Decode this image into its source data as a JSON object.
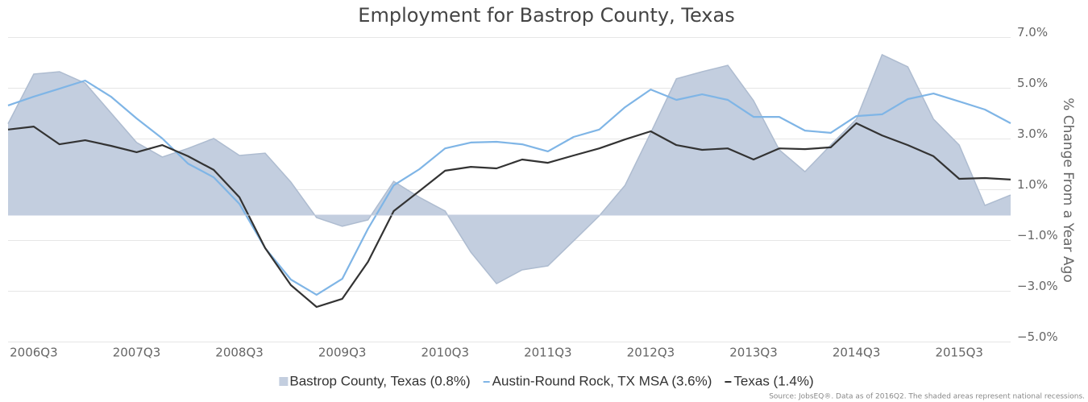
{
  "chart_data": {
    "type": "line",
    "title": "Employment for Bastrop County, Texas",
    "y_axis_label": "% Change From a Year Ago",
    "source": "Source: JobsEQ®. Data as of 2016Q2. The shaded areas represent national recessions.",
    "categories": [
      null,
      "2006Q3",
      null,
      null,
      null,
      "2007Q3",
      null,
      null,
      null,
      "2008Q3",
      null,
      null,
      null,
      "2009Q3",
      null,
      null,
      null,
      "2010Q3",
      null,
      null,
      null,
      "2011Q3",
      null,
      null,
      null,
      "2012Q3",
      null,
      null,
      null,
      "2013Q3",
      null,
      null,
      null,
      "2014Q3",
      null,
      null,
      null,
      "2015Q3",
      null,
      null
    ],
    "ylim": [
      -5,
      7
    ],
    "yticks": [
      {
        "value": -5,
        "label": "−5.0%"
      },
      {
        "value": -3,
        "label": "−3.0%"
      },
      {
        "value": -1,
        "label": "−1.0%"
      },
      {
        "value": 1,
        "label": "1.0%"
      },
      {
        "value": 3,
        "label": "3.0%"
      },
      {
        "value": 5,
        "label": "5.0%"
      },
      {
        "value": 7,
        "label": "7.0%"
      }
    ],
    "y_axis_side": "right",
    "grid": true,
    "legend": "bottom",
    "series": [
      {
        "name": "Bastrop County, Texas (0.8%)",
        "kind": "area",
        "color": "#c3cedf",
        "values": [
          3.6,
          5.56,
          5.65,
          5.2,
          4.03,
          2.86,
          2.29,
          2.63,
          3.02,
          2.35,
          2.44,
          1.3,
          -0.1,
          -0.44,
          -0.19,
          1.33,
          0.7,
          0.16,
          -1.46,
          -2.7,
          -2.16,
          -2.0,
          -1.02,
          -0.03,
          1.17,
          3.24,
          5.37,
          5.65,
          5.9,
          4.51,
          2.57,
          1.71,
          2.76,
          3.78,
          6.32,
          5.84,
          3.78,
          2.76,
          0.38,
          0.79
        ]
      },
      {
        "name": "Austin-Round Rock, TX MSA (3.6%)",
        "kind": "line",
        "color": "#7fb5e6",
        "values": [
          4.32,
          4.67,
          4.98,
          5.3,
          4.67,
          3.81,
          3.02,
          2.03,
          1.49,
          0.44,
          -1.3,
          -2.54,
          -3.14,
          -2.51,
          -0.54,
          1.17,
          1.81,
          2.63,
          2.86,
          2.89,
          2.79,
          2.51,
          3.08,
          3.37,
          4.25,
          4.95,
          4.54,
          4.76,
          4.54,
          3.87,
          3.87,
          3.33,
          3.24,
          3.9,
          3.97,
          4.57,
          4.79,
          4.48,
          4.16,
          3.62
        ]
      },
      {
        "name": "Texas (1.4%)",
        "kind": "line",
        "color": "#333333",
        "values": [
          3.37,
          3.49,
          2.79,
          2.95,
          2.73,
          2.48,
          2.76,
          2.32,
          1.78,
          0.7,
          -1.3,
          -2.76,
          -3.62,
          -3.3,
          -1.84,
          0.16,
          0.95,
          1.75,
          1.9,
          1.84,
          2.19,
          2.06,
          2.35,
          2.63,
          2.98,
          3.3,
          2.76,
          2.57,
          2.63,
          2.19,
          2.63,
          2.6,
          2.67,
          3.62,
          3.14,
          2.76,
          2.32,
          1.43,
          1.46,
          1.4
        ]
      }
    ]
  }
}
